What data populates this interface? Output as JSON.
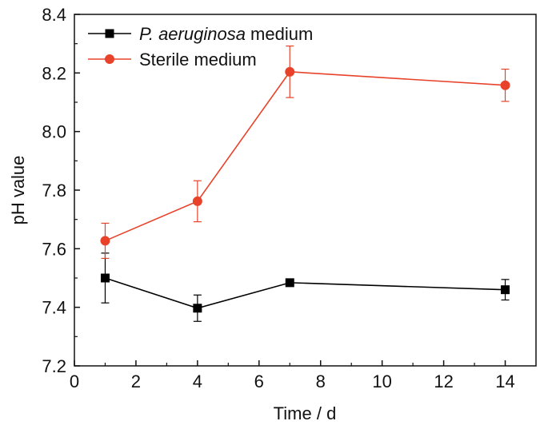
{
  "chart_data": {
    "type": "line",
    "xlabel": "Time / d",
    "ylabel": "pH value",
    "xlim": [
      0,
      15
    ],
    "ylim": [
      7.2,
      8.4
    ],
    "xticks": [
      "0",
      "2",
      "4",
      "6",
      "8",
      "10",
      "12",
      "14"
    ],
    "yticks": [
      "7.2",
      "7.4",
      "7.6",
      "7.8",
      "8.0",
      "8.2",
      "8.4"
    ],
    "grid": false,
    "legend_position": "top-left",
    "series": [
      {
        "name_italic": "P. aeruginosa",
        "name_rest": " medium",
        "color": "#000000",
        "marker": "square",
        "x": [
          1,
          4,
          7,
          14
        ],
        "y": [
          7.5,
          7.397,
          7.484,
          7.46
        ],
        "err": [
          0.085,
          0.045,
          0.008,
          0.035
        ]
      },
      {
        "name": "Sterile medium",
        "color": "#e8432a",
        "marker": "circle",
        "x": [
          1,
          4,
          7,
          14
        ],
        "y": [
          7.627,
          7.762,
          8.204,
          8.158
        ],
        "err": [
          0.06,
          0.07,
          0.088,
          0.055
        ]
      }
    ]
  }
}
